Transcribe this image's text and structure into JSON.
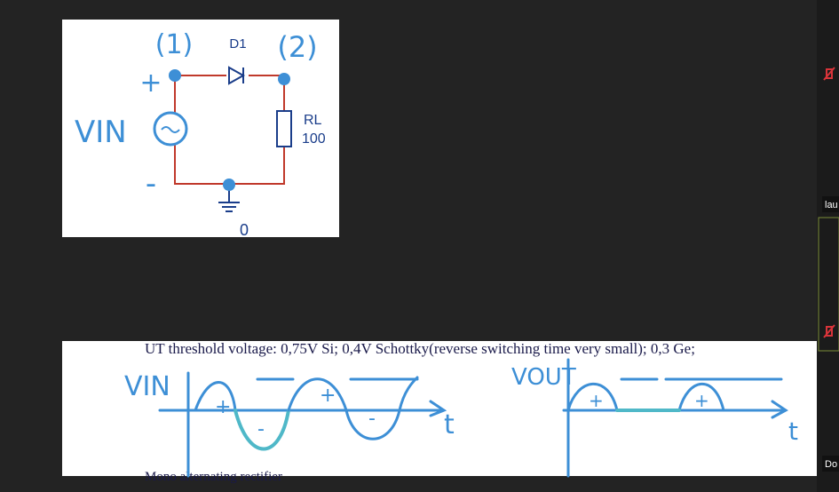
{
  "circuit": {
    "node_1": "(1)",
    "diode": "D1",
    "node_2": "(2)",
    "plus": "+",
    "minus": "-",
    "source": "VIN",
    "resistor": "RL",
    "resistance": "100",
    "ground": "0"
  },
  "notes": {
    "threshold": "UT threshold voltage: 0,75V Si; 0,4V Schottky(reverse switching time very small); 0,3 Ge;",
    "caption": "Mono alternating rectifier",
    "input_label": "VIN",
    "output_label": "VOUT",
    "time_axis": "t",
    "input_signs": [
      "+",
      "-",
      "+",
      "-"
    ],
    "output_signs": [
      "+",
      "+"
    ]
  },
  "sidebar": {
    "participants": [
      "lau",
      "Do"
    ]
  }
}
